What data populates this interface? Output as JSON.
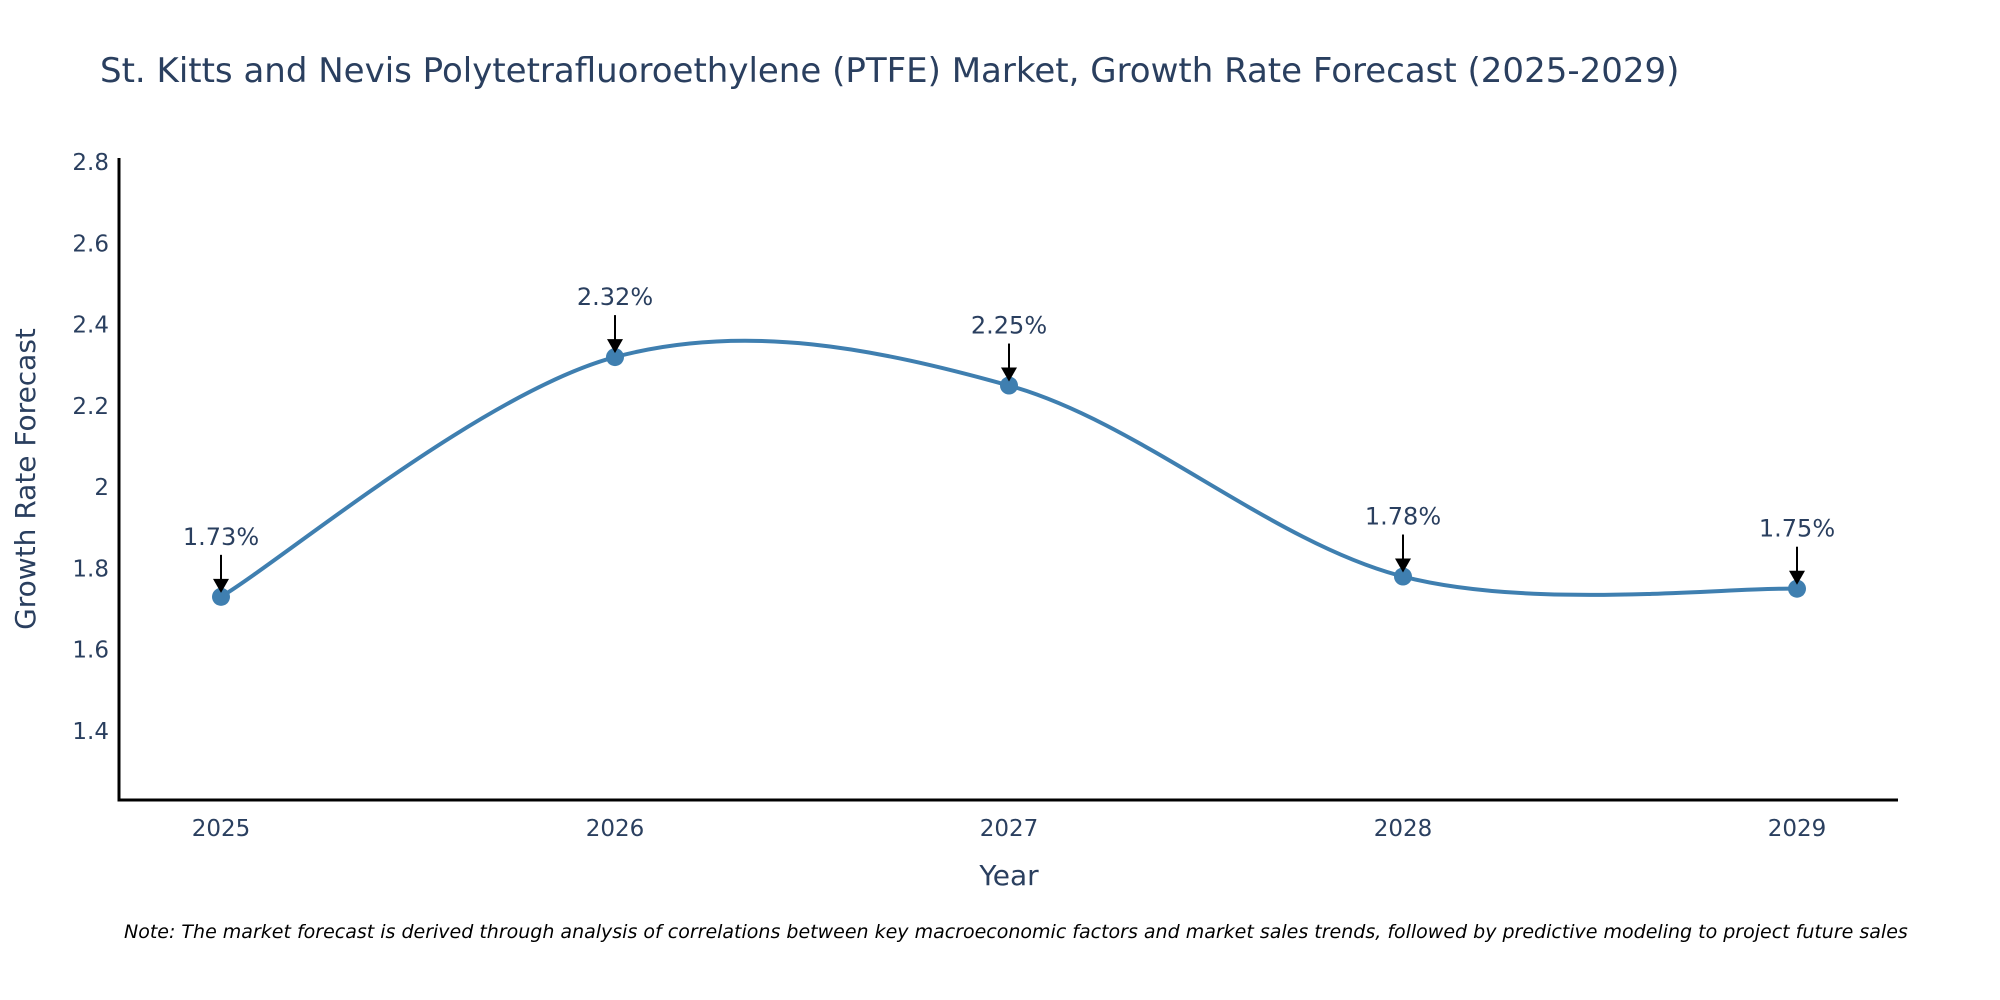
{
  "chart_data": {
    "type": "line",
    "title": "St. Kitts and Nevis Polytetrafluoroethylene (PTFE) Market, Growth Rate Forecast (2025-2029)",
    "xlabel": "Year",
    "ylabel": "Growth Rate Forecast",
    "categories": [
      "2025",
      "2026",
      "2027",
      "2028",
      "2029"
    ],
    "series": [
      {
        "name": "Growth Rate Forecast",
        "values": [
          1.73,
          2.32,
          2.25,
          1.78,
          1.75
        ],
        "labels": [
          "1.73%",
          "2.32%",
          "2.25%",
          "1.78%",
          "1.75%"
        ],
        "color": "#3f7fb0",
        "line_shape": "spline",
        "markers": true
      }
    ],
    "yticks": [
      "1.4",
      "1.6",
      "1.8",
      "2",
      "2.2",
      "2.4",
      "2.6",
      "2.8"
    ],
    "ytick_values": [
      1.4,
      1.6,
      1.8,
      2.0,
      2.2,
      2.4,
      2.6,
      2.8
    ],
    "ylim": [
      1.23,
      2.81
    ],
    "grid": false,
    "legend": "none",
    "annotations": "arrow pointing down to each data point with percentage label above",
    "note": "Note: The market forecast is derived through analysis of correlations between key macroeconomic factors and market sales trends, followed by predictive modeling to project future sales"
  },
  "colors": {
    "line": "#3f7fb0",
    "marker": "#3f7fb0",
    "text": "#2a3f5f",
    "axis": "#000000",
    "arrow": "#000000"
  }
}
